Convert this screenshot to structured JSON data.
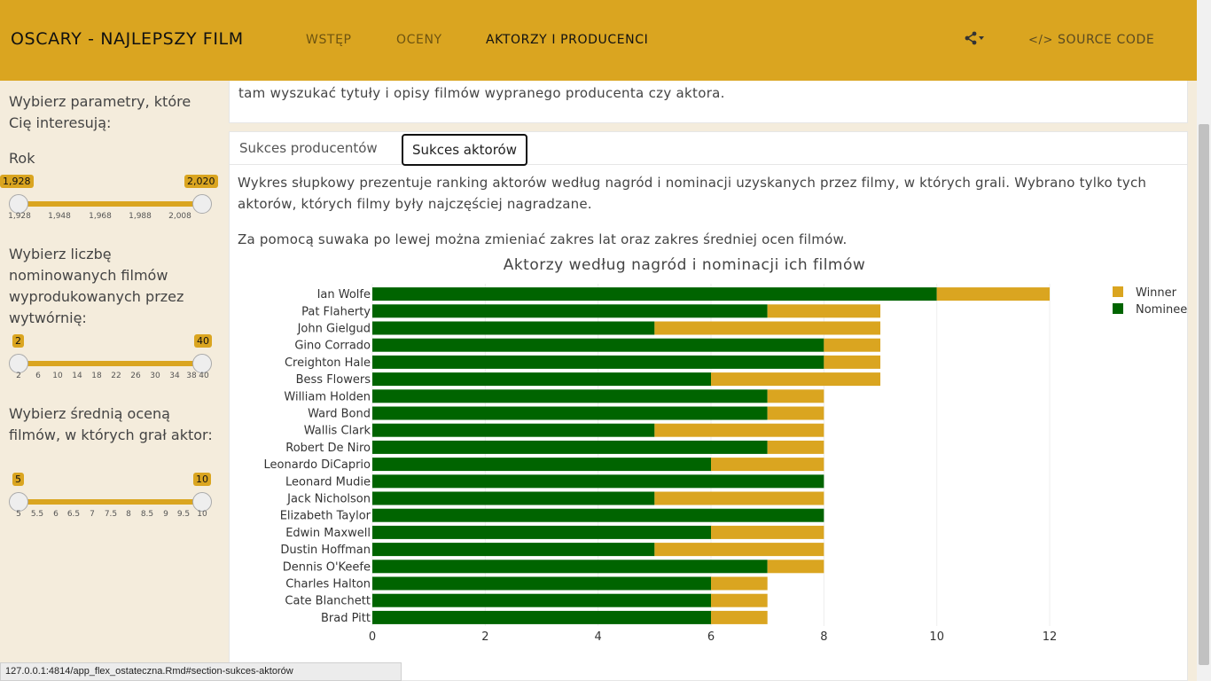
{
  "navbar": {
    "brand": "OSCARY - NAJLEPSZY FILM",
    "items": [
      "WSTĘP",
      "OCENY",
      "AKTORZY I PRODUCENCI"
    ],
    "share_icon": "share-icon",
    "source_label": "SOURCE CODE"
  },
  "sidebar": {
    "intro": "Wybierz parametry, które Cię interesują:",
    "year_label": "Rok",
    "year": {
      "min_val": "1,928",
      "max_val": "2,020",
      "ticks": [
        "1,928",
        "1,948",
        "1,968",
        "1,988",
        "2,008"
      ]
    },
    "nominated_label": "Wybierz liczbę nominowanych filmów wyprodukowanych przez wytwórnię:",
    "nominated": {
      "min_val": "2",
      "max_val": "40",
      "ticks": [
        "2",
        "6",
        "10",
        "14",
        "18",
        "22",
        "26",
        "30",
        "34",
        "38",
        "40"
      ]
    },
    "rating_label": "Wybierz średnią oceną filmów, w których grał aktor:",
    "rating": {
      "min_val": "5",
      "max_val": "10",
      "ticks": [
        "5",
        "5.5",
        "6",
        "6.5",
        "7",
        "7.5",
        "8",
        "8.5",
        "9",
        "9.5",
        "10"
      ]
    }
  },
  "intro_text": "tam wyszukać tytuły i opisy filmów wypranego producenta czy aktora.",
  "tabs": [
    "Sukces producentów",
    "Sukces aktorów"
  ],
  "description1": "Wykres słupkowy prezentuje ranking aktorów według nagród i nominacji uzyskanych przez filmy, w których grali. Wybrano tylko tych aktorów, których filmy były najczęściej nagradzane.",
  "description2": "Za pomocą suwaka po lewej można zmieniać zakres lat oraz zakres średniej ocen filmów.",
  "status_url": "127.0.0.1:4814/app_flex_ostateczna.Rmd#section-sukces-aktorów",
  "colors": {
    "winner": "#daa520",
    "nominee": "#006400"
  },
  "chart_data": {
    "type": "bar",
    "orientation": "horizontal",
    "stacked": true,
    "title": "Aktorzy według nagród i nominacji ich filmów",
    "categories": [
      "Ian Wolfe",
      "Pat Flaherty",
      "John Gielgud",
      "Gino Corrado",
      "Creighton Hale",
      "Bess Flowers",
      "William Holden",
      "Ward Bond",
      "Wallis Clark",
      "Robert De Niro",
      "Leonardo DiCaprio",
      "Leonard Mudie",
      "Jack Nicholson",
      "Elizabeth Taylor",
      "Edwin Maxwell",
      "Dustin Hoffman",
      "Dennis O'Keefe",
      "Charles Halton",
      "Cate Blanchett",
      "Brad Pitt"
    ],
    "series": [
      {
        "name": "Nominee",
        "values": [
          10,
          7,
          5,
          8,
          8,
          6,
          7,
          7,
          5,
          7,
          6,
          8,
          5,
          8,
          6,
          5,
          7,
          6,
          6,
          6
        ]
      },
      {
        "name": "Winner",
        "values": [
          2,
          2,
          4,
          1,
          1,
          3,
          1,
          1,
          3,
          1,
          2,
          0,
          3,
          0,
          2,
          3,
          1,
          1,
          1,
          1
        ]
      }
    ],
    "legend": [
      "Winner",
      "Nominee"
    ],
    "legend_position": "top-right",
    "xlim": [
      0,
      12
    ],
    "xticks": [
      "0",
      "2",
      "4",
      "6",
      "8",
      "10",
      "12"
    ],
    "grid": true
  }
}
